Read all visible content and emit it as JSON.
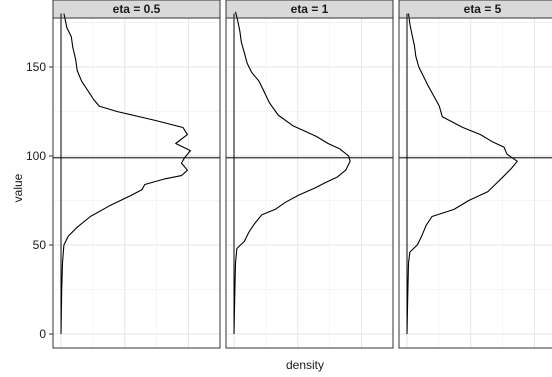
{
  "chart_data": {
    "type": "line",
    "orientation": "density curves drawn horizontally against value axis",
    "facets": [
      "eta = 0.5",
      "eta = 1",
      "eta = 5"
    ],
    "xlabel": "density",
    "ylabel": "value",
    "ylim": [
      0,
      182
    ],
    "y_ticks": [
      0,
      50,
      100,
      150
    ],
    "x_tick_labels_shown": false,
    "xlim": [
      0,
      1
    ],
    "reference_line": {
      "axis": "y",
      "value": 99
    },
    "grid": true,
    "line_color": "#000000",
    "series": [
      {
        "facet": "eta = 0.5",
        "points": [
          [
            0,
            0
          ],
          [
            0.005,
            25
          ],
          [
            0.01,
            40
          ],
          [
            0.02,
            50
          ],
          [
            0.05,
            55
          ],
          [
            0.11,
            60
          ],
          [
            0.2,
            66
          ],
          [
            0.33,
            72
          ],
          [
            0.48,
            78
          ],
          [
            0.55,
            81
          ],
          [
            0.57,
            84
          ],
          [
            0.7,
            87
          ],
          [
            0.82,
            89
          ],
          [
            0.86,
            92
          ],
          [
            0.82,
            96
          ],
          [
            0.84,
            99
          ],
          [
            0.88,
            103
          ],
          [
            0.78,
            107
          ],
          [
            0.86,
            112
          ],
          [
            0.83,
            116
          ],
          [
            0.64,
            120
          ],
          [
            0.38,
            125
          ],
          [
            0.26,
            128
          ],
          [
            0.22,
            132
          ],
          [
            0.18,
            137
          ],
          [
            0.14,
            142
          ],
          [
            0.11,
            148
          ],
          [
            0.1,
            154
          ],
          [
            0.08,
            161
          ],
          [
            0.07,
            167
          ],
          [
            0.04,
            172
          ],
          [
            0.03,
            176
          ],
          [
            0.02,
            180
          ]
        ]
      },
      {
        "facet": "eta = 1",
        "points": [
          [
            0,
            0
          ],
          [
            0.005,
            20
          ],
          [
            0.01,
            40
          ],
          [
            0.02,
            48
          ],
          [
            0.07,
            52
          ],
          [
            0.1,
            57
          ],
          [
            0.14,
            62
          ],
          [
            0.19,
            67
          ],
          [
            0.28,
            70
          ],
          [
            0.35,
            74
          ],
          [
            0.44,
            78
          ],
          [
            0.55,
            82
          ],
          [
            0.62,
            85
          ],
          [
            0.7,
            88
          ],
          [
            0.76,
            92
          ],
          [
            0.79,
            97
          ],
          [
            0.78,
            100
          ],
          [
            0.72,
            104
          ],
          [
            0.64,
            107
          ],
          [
            0.56,
            111
          ],
          [
            0.4,
            117
          ],
          [
            0.3,
            123
          ],
          [
            0.24,
            130
          ],
          [
            0.2,
            137
          ],
          [
            0.17,
            142
          ],
          [
            0.12,
            147
          ],
          [
            0.09,
            152
          ],
          [
            0.07,
            158
          ],
          [
            0.05,
            164
          ],
          [
            0.04,
            170
          ],
          [
            0.025,
            176
          ],
          [
            0.01,
            181
          ]
        ]
      },
      {
        "facet": "eta = 5",
        "points": [
          [
            0,
            0
          ],
          [
            0.005,
            20
          ],
          [
            0.01,
            40
          ],
          [
            0.02,
            46
          ],
          [
            0.07,
            50
          ],
          [
            0.1,
            55
          ],
          [
            0.13,
            61
          ],
          [
            0.17,
            66
          ],
          [
            0.32,
            70
          ],
          [
            0.42,
            75
          ],
          [
            0.55,
            80
          ],
          [
            0.6,
            84
          ],
          [
            0.65,
            88
          ],
          [
            0.71,
            93
          ],
          [
            0.75,
            97
          ],
          [
            0.68,
            101
          ],
          [
            0.66,
            105
          ],
          [
            0.58,
            108
          ],
          [
            0.5,
            112
          ],
          [
            0.38,
            116
          ],
          [
            0.24,
            122
          ],
          [
            0.22,
            128
          ],
          [
            0.18,
            134
          ],
          [
            0.14,
            140
          ],
          [
            0.11,
            145
          ],
          [
            0.08,
            150
          ],
          [
            0.06,
            156
          ],
          [
            0.05,
            162
          ],
          [
            0.035,
            168
          ],
          [
            0.02,
            174
          ],
          [
            0.01,
            180
          ]
        ]
      }
    ]
  }
}
